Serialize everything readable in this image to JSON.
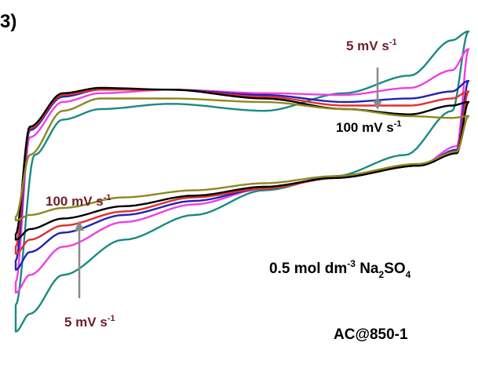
{
  "panel_label": "3)",
  "chart_data": {
    "type": "line",
    "title": "",
    "xlabel": "",
    "ylabel": "",
    "grid": false,
    "xlim": [
      0,
      1
    ],
    "ylim": [
      -1,
      1
    ],
    "annotations": {
      "top_slow": {
        "text": "5 mV s",
        "exponent": "-1",
        "color": "#6d1f2b"
      },
      "top_fast": {
        "text": "100 mV s",
        "exponent": "-1",
        "color": "#000000"
      },
      "bottom_fast": {
        "text": "100 mV s",
        "exponent": "-1",
        "color": "#6d1f2b"
      },
      "bottom_slow": {
        "text": "5 mV s",
        "exponent": "-1",
        "color": "#6d1f2b"
      },
      "electrolyte": {
        "prefix": "0.5 mol dm",
        "exp": "-3",
        "species_a": " Na",
        "sub_a": "2",
        "species_b": "SO",
        "sub_b": "4"
      },
      "sample": "AC@850-1"
    },
    "series": [
      {
        "color": "#1a8a82",
        "upper": [
          [
            0.02,
            -0.55
          ],
          [
            0.06,
            0.3
          ],
          [
            0.12,
            0.5
          ],
          [
            0.2,
            0.56
          ],
          [
            0.35,
            0.59
          ],
          [
            0.55,
            0.55
          ],
          [
            0.72,
            0.65
          ],
          [
            0.86,
            0.75
          ],
          [
            0.95,
            0.95
          ],
          [
            0.985,
            1.0
          ]
        ],
        "lower": [
          [
            0.985,
            1.0
          ],
          [
            0.95,
            0.55
          ],
          [
            0.85,
            0.3
          ],
          [
            0.7,
            0.18
          ],
          [
            0.55,
            0.1
          ],
          [
            0.4,
            -0.04
          ],
          [
            0.25,
            -0.18
          ],
          [
            0.12,
            -0.38
          ],
          [
            0.05,
            -0.6
          ],
          [
            0.02,
            -0.7
          ]
        ]
      },
      {
        "color": "#ee3fe6",
        "upper": [
          [
            0.02,
            -0.42
          ],
          [
            0.05,
            0.4
          ],
          [
            0.12,
            0.6
          ],
          [
            0.2,
            0.65
          ],
          [
            0.35,
            0.67
          ],
          [
            0.55,
            0.65
          ],
          [
            0.72,
            0.64
          ],
          [
            0.86,
            0.68
          ],
          [
            0.95,
            0.78
          ],
          [
            0.985,
            0.9
          ]
        ],
        "lower": [
          [
            0.985,
            0.9
          ],
          [
            0.96,
            0.35
          ],
          [
            0.88,
            0.24
          ],
          [
            0.7,
            0.17
          ],
          [
            0.55,
            0.11
          ],
          [
            0.4,
            0.02
          ],
          [
            0.25,
            -0.08
          ],
          [
            0.12,
            -0.22
          ],
          [
            0.05,
            -0.38
          ],
          [
            0.02,
            -0.48
          ]
        ]
      },
      {
        "color": "#2222b5",
        "upper": [
          [
            0.02,
            -0.3
          ],
          [
            0.05,
            0.44
          ],
          [
            0.12,
            0.63
          ],
          [
            0.2,
            0.67
          ],
          [
            0.35,
            0.67
          ],
          [
            0.55,
            0.64
          ],
          [
            0.72,
            0.6
          ],
          [
            0.86,
            0.62
          ],
          [
            0.95,
            0.66
          ],
          [
            0.985,
            0.72
          ]
        ],
        "lower": [
          [
            0.985,
            0.72
          ],
          [
            0.96,
            0.33
          ],
          [
            0.88,
            0.24
          ],
          [
            0.7,
            0.17
          ],
          [
            0.55,
            0.11
          ],
          [
            0.4,
            0.04
          ],
          [
            0.25,
            -0.04
          ],
          [
            0.12,
            -0.14
          ],
          [
            0.05,
            -0.25
          ],
          [
            0.02,
            -0.35
          ]
        ]
      },
      {
        "color": "#e32e2e",
        "upper": [
          [
            0.02,
            -0.22
          ],
          [
            0.05,
            0.45
          ],
          [
            0.12,
            0.64
          ],
          [
            0.2,
            0.67
          ],
          [
            0.35,
            0.67
          ],
          [
            0.55,
            0.63
          ],
          [
            0.72,
            0.58
          ],
          [
            0.86,
            0.58
          ],
          [
            0.95,
            0.62
          ],
          [
            0.985,
            0.66
          ]
        ],
        "lower": [
          [
            0.985,
            0.66
          ],
          [
            0.96,
            0.32
          ],
          [
            0.88,
            0.24
          ],
          [
            0.7,
            0.17
          ],
          [
            0.55,
            0.11
          ],
          [
            0.4,
            0.06
          ],
          [
            0.25,
            -0.02
          ],
          [
            0.12,
            -0.1
          ],
          [
            0.05,
            -0.18
          ],
          [
            0.02,
            -0.26
          ]
        ]
      },
      {
        "color": "#000000",
        "upper": [
          [
            0.02,
            -0.15
          ],
          [
            0.05,
            0.46
          ],
          [
            0.12,
            0.65
          ],
          [
            0.2,
            0.68
          ],
          [
            0.35,
            0.67
          ],
          [
            0.55,
            0.62
          ],
          [
            0.72,
            0.56
          ],
          [
            0.86,
            0.53
          ],
          [
            0.95,
            0.58
          ],
          [
            0.985,
            0.6
          ]
        ],
        "lower": [
          [
            0.985,
            0.6
          ],
          [
            0.96,
            0.31
          ],
          [
            0.88,
            0.24
          ],
          [
            0.7,
            0.17
          ],
          [
            0.55,
            0.12
          ],
          [
            0.4,
            0.07
          ],
          [
            0.25,
            0.01
          ],
          [
            0.12,
            -0.06
          ],
          [
            0.05,
            -0.12
          ],
          [
            0.02,
            -0.18
          ]
        ]
      },
      {
        "color": "#8c8820",
        "upper": [
          [
            0.02,
            -0.05
          ],
          [
            0.05,
            0.3
          ],
          [
            0.12,
            0.55
          ],
          [
            0.2,
            0.62
          ],
          [
            0.35,
            0.62
          ],
          [
            0.55,
            0.6
          ],
          [
            0.72,
            0.56
          ],
          [
            0.86,
            0.52
          ],
          [
            0.95,
            0.51
          ],
          [
            0.985,
            0.52
          ]
        ],
        "lower": [
          [
            0.985,
            0.52
          ],
          [
            0.96,
            0.32
          ],
          [
            0.88,
            0.25
          ],
          [
            0.7,
            0.18
          ],
          [
            0.55,
            0.14
          ],
          [
            0.4,
            0.1
          ],
          [
            0.25,
            0.06
          ],
          [
            0.12,
            0.0
          ],
          [
            0.05,
            -0.04
          ],
          [
            0.02,
            -0.07
          ]
        ]
      }
    ]
  }
}
